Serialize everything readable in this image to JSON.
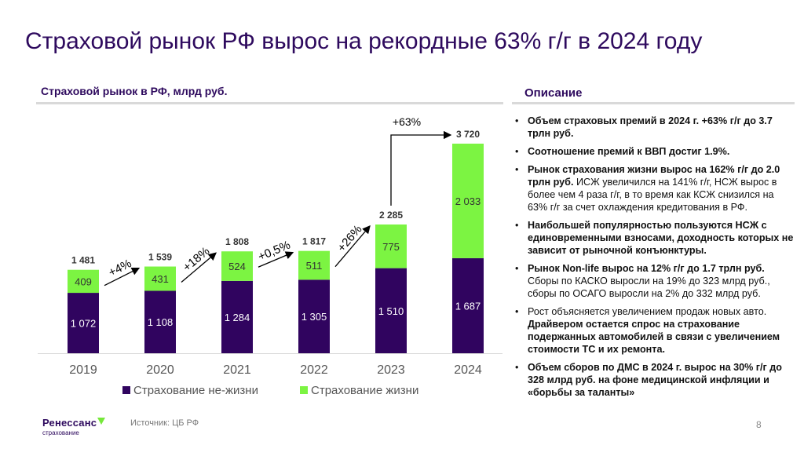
{
  "title": "Страховой рынок РФ вырос на рекордные 63% г/г в 2024 году",
  "chart_header": "Страховой рынок в РФ, млрд руб.",
  "description_header": "Описание",
  "bullets": [
    {
      "parts": [
        {
          "text": "Объем страховых премий в 2024 г. +63% г/г до 3.7 трлн руб.",
          "bold": true
        }
      ]
    },
    {
      "parts": [
        {
          "text": "Соотношение премий к ВВП достиг 1.9%.",
          "bold": true
        }
      ]
    },
    {
      "parts": [
        {
          "text": "Рынок страхования жизни вырос на 162% г/г до 2.0 трлн руб.",
          "bold": true
        },
        {
          "text": " ИСЖ увеличился на 141% г/г, НСЖ вырос в более чем 4 раза г/г, в то время как КСЖ снизился на 63% г/г за счет охлаждения кредитования в РФ.",
          "bold": false
        }
      ]
    },
    {
      "parts": [
        {
          "text": "Наибольшей популярностью пользуются НСЖ с единовременными взносами, доходность которых не зависит от рыночной конъюнктуры.",
          "bold": true
        }
      ]
    },
    {
      "parts": [
        {
          "text": "Рынок Non-life вырос на 12% г/г до 1.7 трлн руб.",
          "bold": true
        },
        {
          "text": " Сборы по КАСКО выросли на 19% до 323 млрд руб., сборы по ОСАГО выросли на 2% до 332 млрд руб.",
          "bold": false
        }
      ]
    },
    {
      "parts": [
        {
          "text": "Рост объясняется увеличением продаж новых авто. ",
          "bold": false
        },
        {
          "text": "Драйвером остается спрос на страхование подержанных автомобилей в связи с увеличением стоимости ТС и их ремонта.",
          "bold": true
        }
      ]
    },
    {
      "parts": [
        {
          "text": "Объем сборов по ДМС в 2024 г. вырос на 30% г/г до 328 млрд руб. на фоне медицинской инфляции и «борьбы за таланты»",
          "bold": true
        }
      ]
    }
  ],
  "logo": {
    "name": "Ренессанс",
    "sub": "страхование"
  },
  "source": "Источник: ЦБ РФ",
  "page_number": "8",
  "colors": {
    "non_life": "#30045f",
    "life": "#7cf442",
    "title": "#2e0a5e"
  },
  "chart_data": {
    "type": "bar",
    "stacked": true,
    "title": "Страховой рынок в РФ, млрд руб.",
    "xlabel": "",
    "ylabel": "",
    "categories": [
      "2019",
      "2020",
      "2021",
      "2022",
      "2023",
      "2024"
    ],
    "series": [
      {
        "name": "Страхование не-жизни",
        "color": "#30045f",
        "values": [
          1072,
          1108,
          1284,
          1305,
          1510,
          1687
        ],
        "labels": [
          "1 072",
          "1 108",
          "1 284",
          "1 305",
          "1 510",
          "1 687"
        ]
      },
      {
        "name": "Страхование жизни",
        "color": "#7cf442",
        "values": [
          409,
          431,
          524,
          511,
          775,
          2033
        ],
        "labels": [
          "409",
          "431",
          "524",
          "511",
          "775",
          "2 033"
        ]
      }
    ],
    "totals": [
      1481,
      1539,
      1808,
      1817,
      2285,
      3720
    ],
    "total_labels": [
      "1 481",
      "1 539",
      "1 808",
      "1 817",
      "2 285",
      "3 720"
    ],
    "growth_annotations": [
      "+4%",
      "+18%",
      "+0,5%",
      "+26%",
      "+63%"
    ],
    "ylim": [
      0,
      3720
    ],
    "grid": false,
    "legend": "bottom"
  }
}
